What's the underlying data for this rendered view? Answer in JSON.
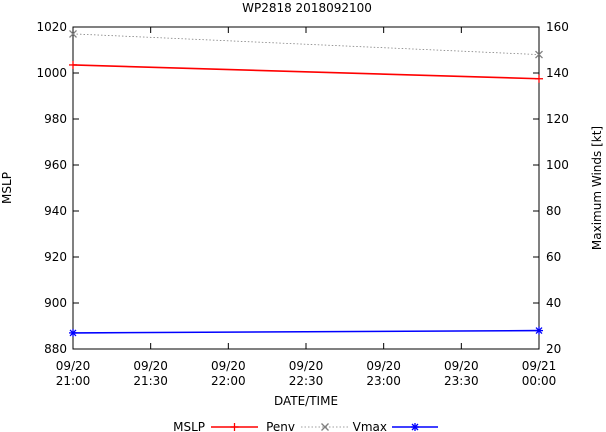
{
  "chart_data": {
    "type": "line",
    "title": "WP2818 2018092100",
    "xlabel": "DATE/TIME",
    "ylabel_left": "MSLP",
    "ylabel_right": "Maximum Winds [kt]",
    "x_ticks": [
      {
        "line1": "09/20",
        "line2": "21:00",
        "hours": 0
      },
      {
        "line1": "09/20",
        "line2": "21:30",
        "hours": 0.5
      },
      {
        "line1": "09/20",
        "line2": "22:00",
        "hours": 1
      },
      {
        "line1": "09/20",
        "line2": "22:30",
        "hours": 1.5
      },
      {
        "line1": "09/20",
        "line2": "23:00",
        "hours": 2
      },
      {
        "line1": "09/20",
        "line2": "23:30",
        "hours": 2.5
      },
      {
        "line1": "09/21",
        "line2": "00:00",
        "hours": 3
      }
    ],
    "xlim": [
      0,
      3
    ],
    "ylim_left": [
      880,
      1020
    ],
    "ylim_right": [
      20,
      160
    ],
    "left_ticks": [
      880,
      900,
      920,
      940,
      960,
      980,
      1000,
      1020
    ],
    "right_ticks": [
      20,
      40,
      60,
      80,
      100,
      120,
      140,
      160
    ],
    "series": [
      {
        "name": "Penv",
        "axis": "left",
        "color": "#ff0000",
        "style": "solid",
        "marker": "plus",
        "x": [
          0,
          3
        ],
        "values": [
          1003.5,
          997.5
        ]
      },
      {
        "name": "Vmax",
        "axis": "right",
        "color": "#808080",
        "style": "dotted",
        "marker": "cross",
        "x": [
          0,
          3
        ],
        "values": [
          157,
          148
        ]
      },
      {
        "name": "MSLP",
        "axis": "left",
        "color": "#0000ff",
        "style": "solid",
        "marker": "star",
        "x": [
          0,
          3
        ],
        "values": [
          887,
          888
        ]
      }
    ],
    "legend": [
      {
        "label": "MSLP",
        "series": "Penv"
      },
      {
        "label": "Penv",
        "series": "Vmax"
      },
      {
        "label": "Vmax",
        "series": "MSLP"
      }
    ],
    "legend_position": "bottom",
    "grid": false
  }
}
